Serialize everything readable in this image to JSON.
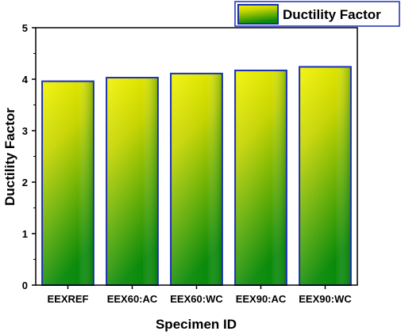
{
  "chart_data": {
    "type": "bar",
    "categories": [
      "EEXREF",
      "EEX60:AC",
      "EEX60:WC",
      "EEX90:AC",
      "EEX90:WC"
    ],
    "series": [
      {
        "name": "Ductility Factor",
        "values": [
          3.96,
          4.03,
          4.11,
          4.17,
          4.24
        ]
      }
    ],
    "xlabel": "Specimen ID",
    "ylabel": "Ductility Factor",
    "ylim": [
      0,
      5
    ],
    "yticks": [
      "0",
      "1",
      "2",
      "3",
      "4",
      "5"
    ],
    "grid": false,
    "legend_position": "top-right",
    "colors": {
      "bar_top": "#f2f200",
      "bar_bottom": "#0a8a0a",
      "bar_border": "#1c2fb0",
      "axis": "#000000"
    }
  }
}
